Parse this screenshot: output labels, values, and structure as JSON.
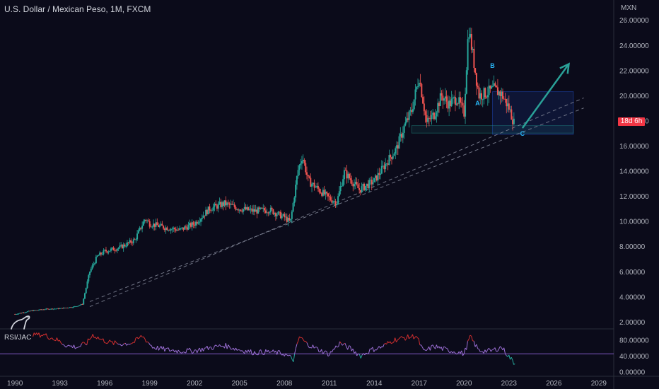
{
  "header": {
    "title": "U.S. Dollar / Mexican Peso, 1M, FXCM",
    "currency": "MXN",
    "countdown": "18d 6h"
  },
  "indicator": {
    "name": "RSI/JAC"
  },
  "colors": {
    "background": "#0b0b1a",
    "up": "#26a69a",
    "down": "#ef5350",
    "projection": "#2aa198",
    "rsi_red": "#d32f2f",
    "rsi_purple": "#9c6fd6",
    "rsi_line": "#7e57c2"
  },
  "chart_data": [
    {
      "type": "candlestick",
      "title": "U.S. Dollar / Mexican Peso, 1M, FXCM",
      "x_ticks": [
        "1990",
        "1993",
        "1996",
        "1999",
        "2002",
        "2005",
        "2008",
        "2011",
        "2014",
        "2017",
        "2020",
        "2023",
        "2026",
        "2029"
      ],
      "y_ticks": [
        "2.00000",
        "4.00000",
        "6.00000",
        "8.00000",
        "10.00000",
        "12.00000",
        "14.00000",
        "16.00000",
        "18.00000",
        "20.00000",
        "22.00000",
        "24.00000",
        "26.00000"
      ],
      "ylim": [
        1.6,
        26.8
      ],
      "xlim": [
        1989.0,
        2030.0
      ],
      "series": [
        {
          "values": [
            [
              1990.0,
              2.6
            ],
            [
              1991.0,
              2.85
            ],
            [
              1992.0,
              3.0
            ],
            [
              1993.0,
              3.05
            ],
            [
              1994.0,
              3.2
            ],
            [
              1994.5,
              3.4
            ],
            [
              1995.0,
              6.0
            ],
            [
              1995.5,
              7.2
            ],
            [
              1996.0,
              7.6
            ],
            [
              1997.0,
              7.9
            ],
            [
              1998.0,
              8.5
            ],
            [
              1998.7,
              10.2
            ],
            [
              1999.0,
              9.8
            ],
            [
              2000.0,
              9.5
            ],
            [
              2001.0,
              9.3
            ],
            [
              2002.0,
              9.8
            ],
            [
              2003.0,
              11.0
            ],
            [
              2004.0,
              11.4
            ],
            [
              2005.0,
              11.0
            ],
            [
              2006.0,
              10.8
            ],
            [
              2007.0,
              10.9
            ],
            [
              2008.0,
              10.3
            ],
            [
              2008.4,
              9.9
            ],
            [
              2008.9,
              14.0
            ],
            [
              2009.2,
              15.2
            ],
            [
              2009.6,
              13.2
            ],
            [
              2010.0,
              12.8
            ],
            [
              2011.0,
              11.8
            ],
            [
              2011.5,
              11.5
            ],
            [
              2012.0,
              13.9
            ],
            [
              2013.0,
              12.5
            ],
            [
              2014.0,
              13.2
            ],
            [
              2014.9,
              14.8
            ],
            [
              2015.5,
              15.8
            ],
            [
              2016.0,
              17.5
            ],
            [
              2016.5,
              18.8
            ],
            [
              2017.0,
              21.5
            ],
            [
              2017.5,
              17.8
            ],
            [
              2018.0,
              18.5
            ],
            [
              2018.5,
              20.0
            ],
            [
              2019.0,
              19.3
            ],
            [
              2019.5,
              19.8
            ],
            [
              2020.0,
              18.6
            ],
            [
              2020.3,
              25.5
            ],
            [
              2020.8,
              21.5
            ],
            [
              2021.0,
              20.0
            ],
            [
              2021.5,
              20.2
            ],
            [
              2022.0,
              20.5
            ],
            [
              2022.5,
              20.1
            ],
            [
              2023.0,
              19.0
            ],
            [
              2023.4,
              17.6
            ]
          ]
        }
      ],
      "annotations": [
        {
          "label": "A",
          "x": 2020.9,
          "y": 19.2
        },
        {
          "label": "B",
          "x": 2021.9,
          "y": 22.2
        },
        {
          "label": "C",
          "x": 2023.9,
          "y": 16.8
        }
      ],
      "projection": {
        "from": [
          2023.9,
          17.4
        ],
        "to": [
          2027.0,
          22.5
        ]
      },
      "zone": {
        "x": [
          2021.9,
          2027.3
        ],
        "y": [
          16.9,
          20.3
        ]
      },
      "support_box": {
        "x": [
          2016.5,
          2027.3
        ],
        "y": [
          17.0,
          17.6
        ]
      },
      "trendlines": [
        {
          "from": [
            1995.0,
            3.6
          ],
          "to": [
            2028.0,
            19.0
          ]
        },
        {
          "from": [
            1995.0,
            3.2
          ],
          "to": [
            2028.0,
            19.8
          ]
        }
      ]
    },
    {
      "type": "line",
      "title": "RSI/JAC",
      "y_ticks": [
        "0.00000",
        "40.00000",
        "80.00000"
      ],
      "ylim": [
        -8,
        106
      ],
      "series": [
        {
          "name": "RSI/JAC",
          "values": [
            [
              1991.2,
              95
            ],
            [
              1992.0,
              92
            ],
            [
              1992.8,
              80
            ],
            [
              1993.5,
              65
            ],
            [
              1994.2,
              62
            ],
            [
              1994.8,
              72
            ],
            [
              1995.2,
              93
            ],
            [
              1995.8,
              80
            ],
            [
              1996.5,
              72
            ],
            [
              1997.2,
              70
            ],
            [
              1997.9,
              73
            ],
            [
              1998.5,
              90
            ],
            [
              1999.2,
              62
            ],
            [
              2000.0,
              56
            ],
            [
              2001.0,
              52
            ],
            [
              2002.0,
              53
            ],
            [
              2003.0,
              60
            ],
            [
              2004.0,
              66
            ],
            [
              2005.0,
              55
            ],
            [
              2006.0,
              48
            ],
            [
              2007.0,
              50
            ],
            [
              2008.0,
              45
            ],
            [
              2008.6,
              30
            ],
            [
              2009.0,
              88
            ],
            [
              2009.5,
              70
            ],
            [
              2010.3,
              55
            ],
            [
              2011.0,
              44
            ],
            [
              2011.7,
              72
            ],
            [
              2012.4,
              58
            ],
            [
              2013.1,
              40
            ],
            [
              2013.8,
              55
            ],
            [
              2014.5,
              62
            ],
            [
              2015.3,
              80
            ],
            [
              2016.0,
              85
            ],
            [
              2016.8,
              90
            ],
            [
              2017.3,
              50
            ],
            [
              2018.0,
              64
            ],
            [
              2018.8,
              55
            ],
            [
              2019.5,
              50
            ],
            [
              2020.0,
              45
            ],
            [
              2020.4,
              88
            ],
            [
              2021.0,
              53
            ],
            [
              2021.8,
              52
            ],
            [
              2022.5,
              62
            ],
            [
              2023.0,
              38
            ],
            [
              2023.4,
              20
            ]
          ]
        }
      ],
      "reference_line": 45
    }
  ]
}
